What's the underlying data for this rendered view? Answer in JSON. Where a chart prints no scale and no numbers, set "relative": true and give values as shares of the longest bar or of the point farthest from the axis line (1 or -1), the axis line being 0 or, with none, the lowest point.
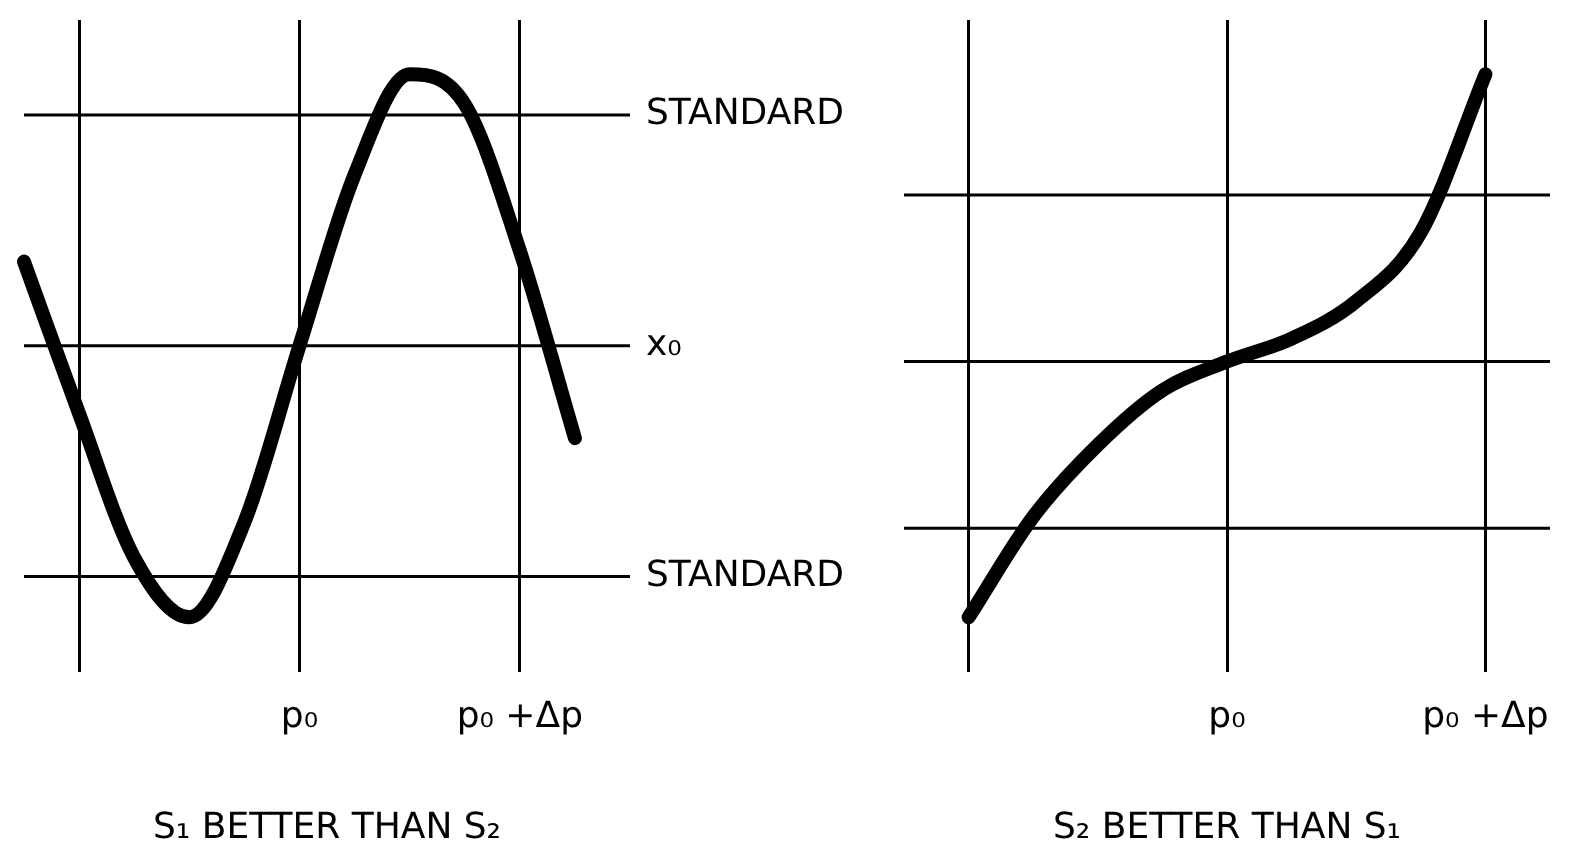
{
  "chart_data": [
    {
      "type": "line",
      "relative": true,
      "xlabel": "S₁ BETTER THAN S₂",
      "categories": [
        null,
        null,
        null,
        null,
        null,
        "p₀",
        null,
        null,
        null,
        "p₀ +Δp",
        null,
        null
      ],
      "series": [
        {
          "color": "#000000",
          "values": [
            0.31,
            -0.25,
            -0.78,
            -1,
            -0.65,
            0,
            0.63,
            1,
            0.89,
            0.35,
            -0.34,
            null
          ]
        }
      ],
      "grid": "x",
      "ref_lines": [
        {
          "axis": "y",
          "value": 0.85,
          "label": "STANDARD",
          "color": "#000000"
        },
        {
          "axis": "y",
          "value": 0,
          "label": "x₀",
          "color": "#000000"
        },
        {
          "axis": "y",
          "value": -0.85,
          "label": "STANDARD",
          "color": "#000000"
        }
      ],
      "legend": false,
      "marker": "none",
      "line_style": "solid"
    },
    {
      "type": "line",
      "relative": true,
      "xlabel": "S₂ BETTER THAN S₁",
      "categories": [
        null,
        null,
        null,
        null,
        null,
        "p₀",
        null,
        null,
        null,
        "p₀ +Δp",
        null
      ],
      "series": [
        {
          "color": "#000000",
          "values": [
            null,
            -0.89,
            -0.54,
            -0.29,
            -0.1,
            0,
            0.08,
            0.21,
            0.45,
            1,
            null
          ]
        }
      ],
      "grid": "x",
      "ref_lines": [
        {
          "axis": "y",
          "value": 0.58,
          "label": null,
          "color": "#000000"
        },
        {
          "axis": "y",
          "value": 0,
          "label": null,
          "color": "#000000"
        },
        {
          "axis": "y",
          "value": -0.58,
          "label": null,
          "color": "#000000"
        }
      ],
      "legend": false,
      "marker": "none",
      "line_style": "solid"
    }
  ]
}
